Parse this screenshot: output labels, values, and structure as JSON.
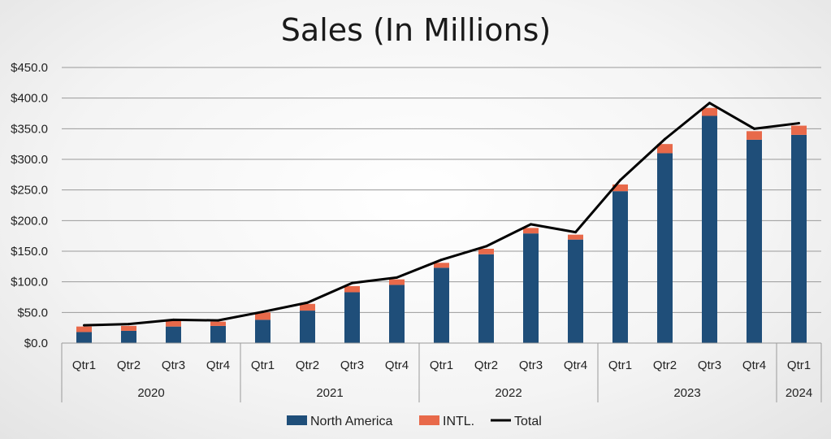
{
  "chart_data": {
    "type": "bar",
    "stacked": true,
    "title": "Sales (In Millions)",
    "xlabel": "",
    "ylabel": "",
    "ylim": [
      0,
      450
    ],
    "yticks": [
      "$0.0",
      "$50.0",
      "$100.0",
      "$150.0",
      "$200.0",
      "$250.0",
      "$300.0",
      "$350.0",
      "$400.0",
      "$450.0"
    ],
    "grid": true,
    "legend_position": "bottom",
    "categories": [
      "Qtr1",
      "Qtr2",
      "Qtr3",
      "Qtr4",
      "Qtr1",
      "Qtr2",
      "Qtr3",
      "Qtr4",
      "Qtr1",
      "Qtr2",
      "Qtr3",
      "Qtr4",
      "Qtr1",
      "Qtr2",
      "Qtr3",
      "Qtr4",
      "Qtr1"
    ],
    "groups": [
      {
        "label": "2020",
        "count": 4
      },
      {
        "label": "2021",
        "count": 4
      },
      {
        "label": "2022",
        "count": 4
      },
      {
        "label": "2023",
        "count": 4
      },
      {
        "label": "2024",
        "count": 1
      }
    ],
    "series": [
      {
        "name": "North America",
        "kind": "bar",
        "color": "#1f4e79",
        "values": [
          18,
          20,
          27,
          28,
          38,
          53,
          83,
          95,
          123,
          145,
          179,
          169,
          248,
          310,
          371,
          332,
          340
        ]
      },
      {
        "name": "INTL.",
        "kind": "bar",
        "color": "#e8694a",
        "values": [
          9,
          8,
          10,
          7,
          12,
          11,
          10,
          9,
          8,
          9,
          9,
          8,
          11,
          15,
          13,
          14,
          15
        ]
      },
      {
        "name": "Total",
        "kind": "line",
        "color": "#000000",
        "values": [
          29,
          31,
          38,
          37,
          51,
          66,
          98,
          107,
          136,
          158,
          194,
          181,
          266,
          333,
          392,
          350,
          359
        ]
      }
    ]
  }
}
